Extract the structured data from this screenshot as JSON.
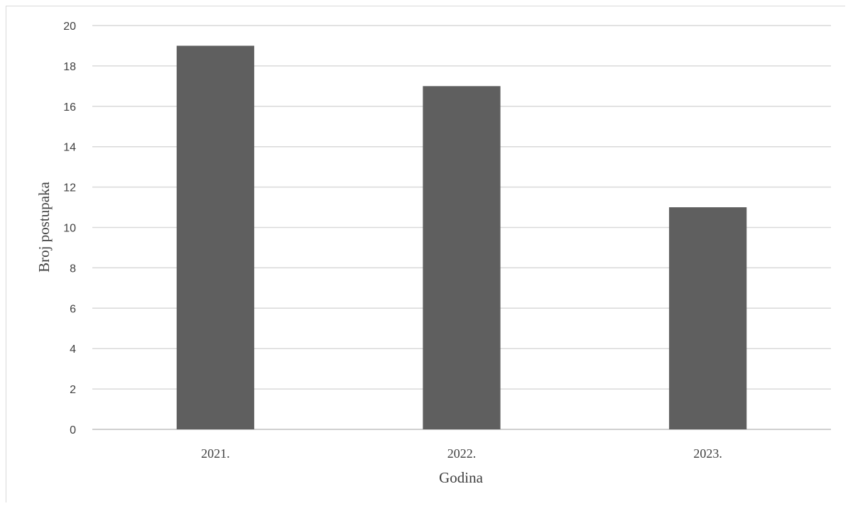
{
  "chart_data": {
    "type": "bar",
    "title": "",
    "xlabel": "Godina",
    "ylabel": "Broj postupaka",
    "categories": [
      "2021.",
      "2022.",
      "2023."
    ],
    "values": [
      19,
      17,
      11
    ],
    "ylim": [
      0,
      20
    ],
    "yticks": [
      "0",
      "2",
      "4",
      "6",
      "8",
      "10",
      "12",
      "14",
      "16",
      "18",
      "20"
    ],
    "grid": true,
    "legend": "none",
    "colors": {
      "bar": "#5f5f5f",
      "grid": "#d9d9d9",
      "axis": "#bfbfbf",
      "text": "#404040"
    }
  }
}
